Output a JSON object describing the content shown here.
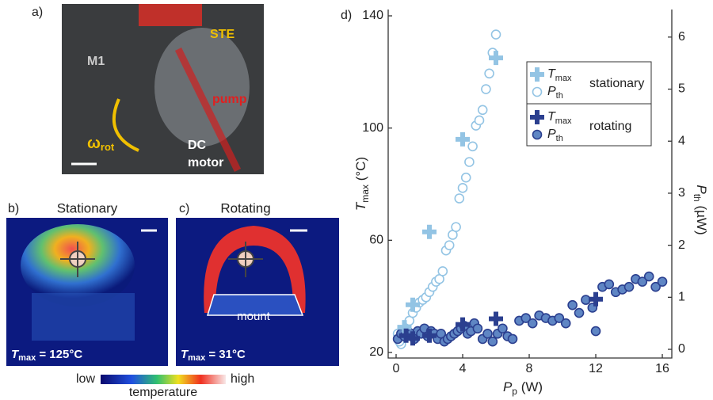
{
  "panels": {
    "a": {
      "label": "a)",
      "ste": "STE",
      "m1": "M1",
      "pump": "pump",
      "omega": "ω",
      "omega_sub": "rot",
      "dc_motor": [
        "DC",
        "motor"
      ]
    },
    "b": {
      "label": "b)",
      "title": "Stationary",
      "tmax_symbol": "T",
      "tmax_sub": "max",
      "tmax_rest": " = 125°C"
    },
    "c": {
      "label": "c)",
      "title": "Rotating",
      "mount": "mount",
      "tmax_symbol": "T",
      "tmax_sub": "max",
      "tmax_rest": " = 31°C"
    },
    "colorbar": {
      "low": "low",
      "high": "high",
      "label": "temperature"
    }
  },
  "chart_data": {
    "type": "scatter",
    "label": "d)",
    "x_label": {
      "symbol": "P",
      "sub": "p",
      "unit": " (W)"
    },
    "y_label": {
      "symbol": "T",
      "sub": "max",
      "unit": " (°C)"
    },
    "y2_label": {
      "symbol": "P",
      "sub": "th",
      "unit": " (µW)"
    },
    "xlim": [
      -0.476,
      16.57
    ],
    "xticks": [
      0,
      4,
      8,
      12,
      16
    ],
    "ylim": [
      18.02,
      142.26
    ],
    "yticks": [
      20,
      60,
      100,
      140
    ],
    "y2lim": [
      -0.167,
      6.53
    ],
    "y2ticks": [
      0,
      1,
      2,
      3,
      4,
      5,
      6
    ],
    "legend_groups": [
      "stationary",
      "rotating"
    ],
    "series": [
      {
        "name": "T",
        "name_sub": "max",
        "marker": "plus",
        "color": "#93c4e4",
        "axis": "y",
        "x": [
          0.5,
          1,
          2,
          4,
          6
        ],
        "values": [
          29,
          37,
          63,
          96,
          125
        ]
      },
      {
        "name": "P",
        "name_sub": "th",
        "marker": "open-circle",
        "color": "#93c4e4",
        "axis": "y2",
        "x": [
          0.1,
          0.3,
          0.2,
          0.4,
          0.6,
          0.8,
          1.0,
          1.2,
          1.4,
          1.6,
          1.8,
          2.0,
          2.2,
          2.4,
          2.6,
          2.8,
          3.0,
          3.2,
          3.4,
          3.6,
          3.8,
          4.0,
          4.2,
          4.4,
          4.6,
          4.8,
          5.0,
          5.2,
          5.4,
          5.6,
          5.8,
          6.0
        ],
        "values": [
          0.3,
          0.1,
          0.15,
          0.3,
          0.4,
          0.55,
          0.7,
          0.8,
          0.9,
          0.95,
          1.0,
          1.1,
          1.2,
          1.3,
          1.35,
          1.5,
          1.9,
          2.0,
          2.2,
          2.35,
          2.9,
          3.1,
          3.3,
          3.6,
          3.9,
          4.3,
          4.4,
          4.6,
          5.0,
          5.3,
          5.7,
          6.05
        ]
      },
      {
        "name": "T",
        "name_sub": "max",
        "marker": "plus",
        "color": "#2b3f8f",
        "axis": "y",
        "x": [
          0.6,
          1,
          2,
          4,
          6,
          12
        ],
        "values": [
          26,
          25,
          26,
          30,
          32,
          39
        ]
      },
      {
        "name": "P",
        "name_sub": "th",
        "marker": "filled-circle",
        "color": "#2b3f8f",
        "fill": "#5f86c4",
        "axis": "y2",
        "x": [
          0.1,
          0.3,
          0.5,
          0.7,
          0.9,
          1.1,
          1.3,
          1.5,
          1.7,
          1.9,
          2.1,
          2.3,
          2.5,
          2.7,
          2.9,
          3.1,
          3.3,
          3.5,
          3.7,
          3.9,
          4.1,
          4.3,
          4.5,
          4.7,
          4.9,
          5.2,
          5.5,
          5.8,
          6.1,
          6.4,
          6.7,
          7.0,
          7.4,
          7.8,
          8.2,
          8.6,
          9.0,
          9.4,
          9.8,
          10.2,
          10.6,
          11.0,
          11.4,
          11.8,
          12.0,
          12.4,
          12.8,
          13.2,
          13.6,
          14.0,
          14.4,
          14.8,
          15.2,
          15.6,
          16.0
        ],
        "values": [
          0.2,
          0.3,
          0.25,
          0.35,
          0.3,
          0.2,
          0.35,
          0.3,
          0.4,
          0.25,
          0.35,
          0.3,
          0.2,
          0.3,
          0.15,
          0.2,
          0.25,
          0.3,
          0.35,
          0.4,
          0.45,
          0.3,
          0.35,
          0.5,
          0.4,
          0.2,
          0.3,
          0.15,
          0.3,
          0.4,
          0.25,
          0.2,
          0.55,
          0.6,
          0.5,
          0.65,
          0.6,
          0.55,
          0.6,
          0.5,
          0.85,
          0.7,
          0.95,
          0.8,
          0.35,
          1.2,
          1.25,
          1.1,
          1.15,
          1.2,
          1.35,
          1.3,
          1.4,
          1.2,
          1.3
        ]
      }
    ]
  }
}
